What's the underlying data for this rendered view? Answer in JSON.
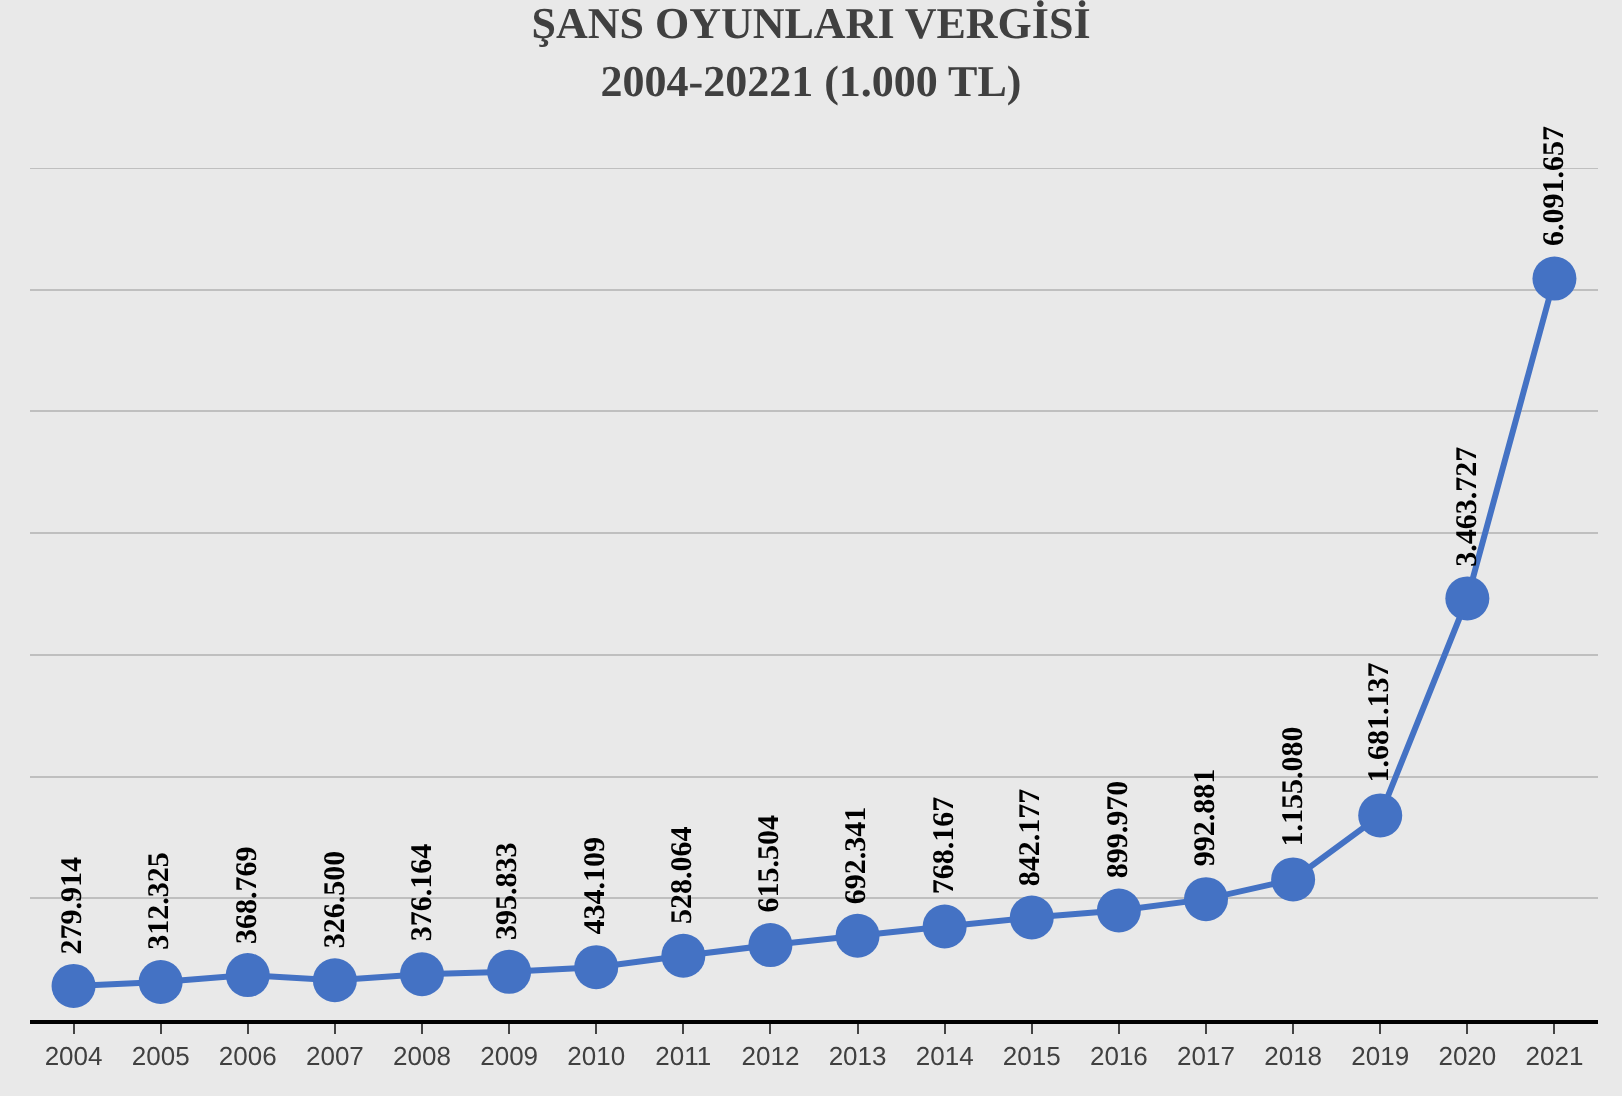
{
  "chart_data": {
    "type": "line",
    "title": "ŞANS OYUNLARI VERGİSİ\n2004-20221 (1.000 TL)",
    "categories": [
      "2004",
      "2005",
      "2006",
      "2007",
      "2008",
      "2009",
      "2010",
      "2011",
      "2012",
      "2013",
      "2014",
      "2015",
      "2016",
      "2017",
      "2018",
      "2019",
      "2020",
      "2021"
    ],
    "series": [
      {
        "color": "#4472c4",
        "values": [
          279914,
          312325,
          368769,
          326500,
          376164,
          395833,
          434109,
          528064,
          615504,
          692341,
          768167,
          842177,
          899970,
          992881,
          1155080,
          1681137,
          3463727,
          6091657
        ],
        "value_labels": [
          "279.914",
          "312.325",
          "368.769",
          "326.500",
          "376.164",
          "395.833",
          "434.109",
          "528.064",
          "615.504",
          "692.341",
          "768.167",
          "842.177",
          "899.970",
          "992.881",
          "1.155.080",
          "1.681.137",
          "3.463.727",
          "6.091.657"
        ]
      }
    ],
    "ylim": [
      0,
      7000000
    ],
    "yticks": [
      {
        "value": 0,
        "label": null
      },
      {
        "value": 1000000,
        "label": null
      },
      {
        "value": 2000000,
        "label": null
      },
      {
        "value": 3000000,
        "label": null
      },
      {
        "value": 4000000,
        "label": null
      },
      {
        "value": 5000000,
        "label": null
      },
      {
        "value": 6000000,
        "label": null
      },
      {
        "value": 7000000,
        "label": null
      }
    ],
    "tick_labels": "x",
    "grid": "y",
    "marker": "circle",
    "line_style": "solid",
    "legend": false
  }
}
